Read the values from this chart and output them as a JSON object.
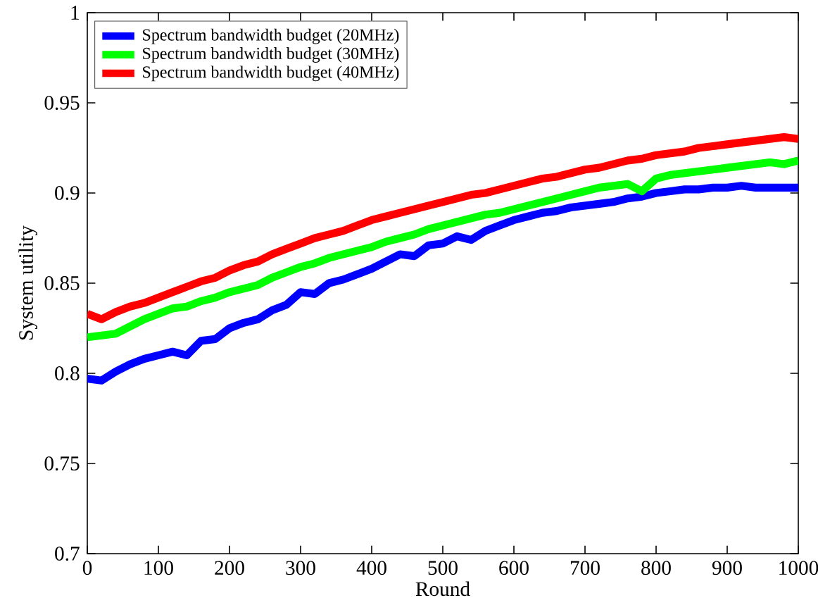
{
  "chart_data": {
    "type": "line",
    "xlabel": "Round",
    "ylabel": "System utility",
    "x": [
      0,
      20,
      40,
      60,
      80,
      100,
      120,
      140,
      160,
      180,
      200,
      220,
      240,
      260,
      280,
      300,
      320,
      340,
      360,
      380,
      400,
      420,
      440,
      460,
      480,
      500,
      520,
      540,
      560,
      580,
      600,
      620,
      640,
      660,
      680,
      700,
      720,
      740,
      760,
      780,
      800,
      820,
      840,
      860,
      880,
      900,
      920,
      940,
      960,
      980,
      1000
    ],
    "series": [
      {
        "name": "Spectrum bandwidth budget (20MHz)",
        "color": "#0000ff",
        "values": [
          0.797,
          0.796,
          0.801,
          0.805,
          0.808,
          0.81,
          0.812,
          0.81,
          0.818,
          0.819,
          0.825,
          0.828,
          0.83,
          0.835,
          0.838,
          0.845,
          0.844,
          0.85,
          0.852,
          0.855,
          0.858,
          0.862,
          0.866,
          0.865,
          0.871,
          0.872,
          0.876,
          0.874,
          0.879,
          0.882,
          0.885,
          0.887,
          0.889,
          0.89,
          0.892,
          0.893,
          0.894,
          0.895,
          0.897,
          0.898,
          0.9,
          0.901,
          0.902,
          0.902,
          0.903,
          0.903,
          0.904,
          0.903,
          0.903,
          0.903,
          0.903
        ]
      },
      {
        "name": "Spectrum bandwidth budget (30MHz)",
        "color": "#00ff00",
        "values": [
          0.82,
          0.821,
          0.822,
          0.826,
          0.83,
          0.833,
          0.836,
          0.837,
          0.84,
          0.842,
          0.845,
          0.847,
          0.849,
          0.853,
          0.856,
          0.859,
          0.861,
          0.864,
          0.866,
          0.868,
          0.87,
          0.873,
          0.875,
          0.877,
          0.88,
          0.882,
          0.884,
          0.886,
          0.888,
          0.889,
          0.891,
          0.893,
          0.895,
          0.897,
          0.899,
          0.901,
          0.903,
          0.904,
          0.905,
          0.901,
          0.908,
          0.91,
          0.911,
          0.912,
          0.913,
          0.914,
          0.915,
          0.916,
          0.917,
          0.916,
          0.918
        ]
      },
      {
        "name": "Spectrum bandwidth budget (40MHz)",
        "color": "#ff0000",
        "values": [
          0.833,
          0.83,
          0.834,
          0.837,
          0.839,
          0.842,
          0.845,
          0.848,
          0.851,
          0.853,
          0.857,
          0.86,
          0.862,
          0.866,
          0.869,
          0.872,
          0.875,
          0.877,
          0.879,
          0.882,
          0.885,
          0.887,
          0.889,
          0.891,
          0.893,
          0.895,
          0.897,
          0.899,
          0.9,
          0.902,
          0.904,
          0.906,
          0.908,
          0.909,
          0.911,
          0.913,
          0.914,
          0.916,
          0.918,
          0.919,
          0.921,
          0.922,
          0.923,
          0.925,
          0.926,
          0.927,
          0.928,
          0.929,
          0.93,
          0.931,
          0.93
        ]
      }
    ],
    "xlim": [
      0,
      1000
    ],
    "ylim": [
      0.7,
      1
    ],
    "xticks": [
      0,
      100,
      200,
      300,
      400,
      500,
      600,
      700,
      800,
      900,
      1000
    ],
    "yticks": [
      0.7,
      0.75,
      0.8,
      0.85,
      0.9,
      0.95,
      1
    ],
    "grid": false,
    "legend": "top left",
    "marker": "none",
    "line_style": "solid"
  }
}
